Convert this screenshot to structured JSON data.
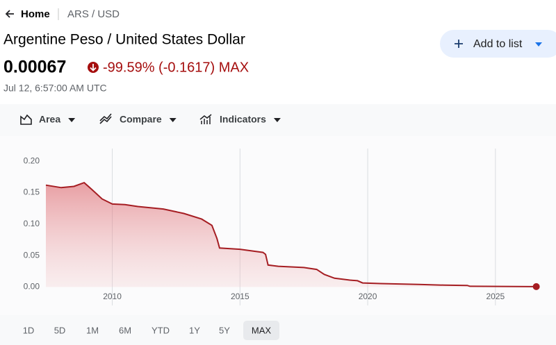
{
  "header": {
    "home": "Home",
    "pair": "ARS / USD"
  },
  "title": "Argentine Peso / United States Dollar",
  "price": "0.00067",
  "change": "-99.59% (-0.1617) MAX",
  "timestamp": "Jul 12, 6:57:00 AM UTC",
  "add_button": "Add to list",
  "toolbar": [
    "Area",
    "Compare",
    "Indicators"
  ],
  "ranges": [
    "1D",
    "5D",
    "1M",
    "6M",
    "YTD",
    "1Y",
    "5Y",
    "MAX"
  ],
  "selected_range": "MAX",
  "chart_data": {
    "type": "area",
    "x": [
      2007.4,
      2008.0,
      2008.5,
      2008.9,
      2009.2,
      2009.6,
      2010.0,
      2010.5,
      2011.0,
      2012.0,
      2012.8,
      2013.5,
      2013.9,
      2014.1,
      2014.2,
      2015.0,
      2015.9,
      2016.0,
      2016.1,
      2016.5,
      2017.5,
      2018.0,
      2018.3,
      2018.7,
      2019.3,
      2019.6,
      2019.8,
      2020.5,
      2022.0,
      2023.0,
      2023.9,
      2024.0,
      2026.6
    ],
    "values": [
      0.162,
      0.158,
      0.16,
      0.166,
      0.155,
      0.14,
      0.132,
      0.131,
      0.128,
      0.124,
      0.117,
      0.108,
      0.098,
      0.077,
      0.062,
      0.06,
      0.055,
      0.052,
      0.035,
      0.033,
      0.031,
      0.028,
      0.02,
      0.014,
      0.011,
      0.01,
      0.0065,
      0.0055,
      0.004,
      0.003,
      0.0025,
      0.0012,
      0.00067
    ],
    "color": "#a51d22",
    "xlim": [
      2007.4,
      2027.1
    ],
    "ylim": [
      -0.005,
      0.24
    ],
    "xticks": [
      2010,
      2015,
      2020,
      2025
    ],
    "yticks": [
      {
        "value": 0,
        "label": "0.00"
      },
      {
        "value": 0.05,
        "label": "0.05"
      },
      {
        "value": 0.1,
        "label": "0.10"
      },
      {
        "value": 0.15,
        "label": "0.15"
      },
      {
        "value": 0.2,
        "label": "0.20"
      }
    ],
    "grid": "x"
  }
}
